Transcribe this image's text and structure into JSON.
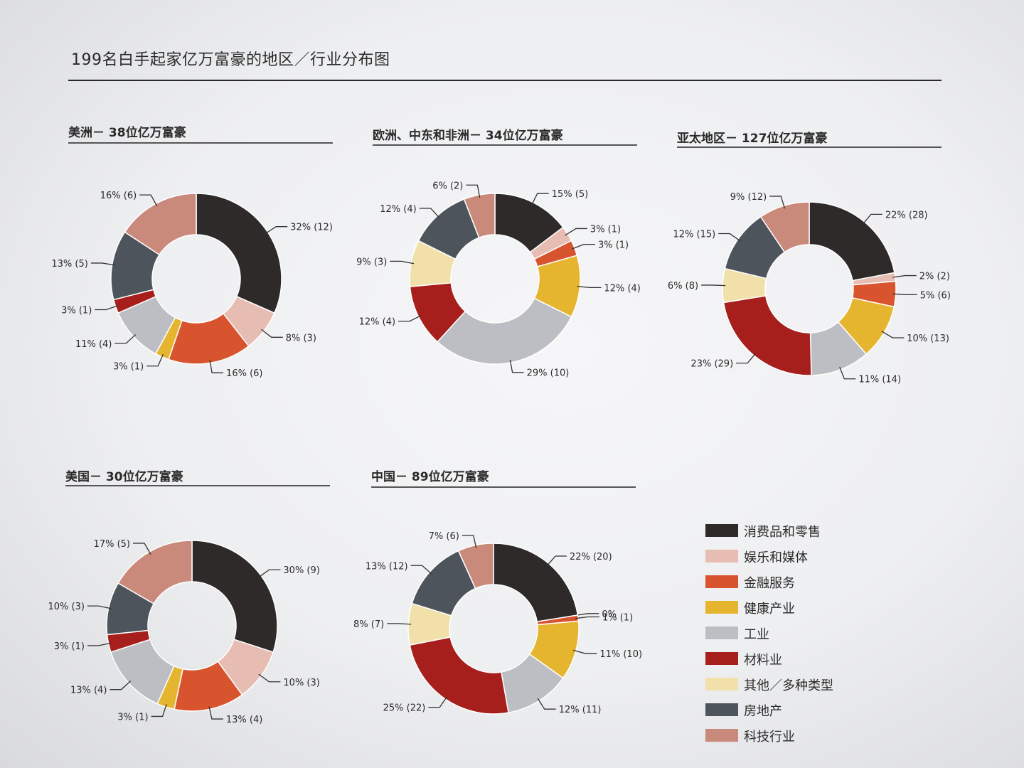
{
  "title": "199名白手起家亿万富豪的地区／行业分布图",
  "categories": [
    {
      "name": "消费品和零售",
      "color": "#2e2a29"
    },
    {
      "name": "娱乐和媒体",
      "color": "#e7bcb3"
    },
    {
      "name": "金融服务",
      "color": "#d8542e"
    },
    {
      "name": "健康产业",
      "color": "#e6b530"
    },
    {
      "name": "工业",
      "color": "#bcbec3"
    },
    {
      "name": "材料业",
      "color": "#a61f1d"
    },
    {
      "name": "其他／多种类型",
      "color": "#f1e0aa"
    },
    {
      "name": "房地产",
      "color": "#4d545b"
    },
    {
      "name": "科技行业",
      "color": "#c98a7c"
    }
  ],
  "chart_data": [
    {
      "type": "pie",
      "title": "美洲－ 38位亿万富豪",
      "categories": [
        "消费品和零售",
        "娱乐和媒体",
        "金融服务",
        "健康产业",
        "工业",
        "材料业",
        "其他／多种类型",
        "房地产",
        "科技行业"
      ],
      "values": [
        12,
        3,
        6,
        1,
        4,
        1,
        0,
        5,
        6
      ],
      "labels": [
        "32% (12)",
        "8% (3)",
        "16% (6)",
        "3% (1)",
        "11% (4)",
        "3% (1)",
        "",
        "13% (5)",
        "16% (6)"
      ]
    },
    {
      "type": "pie",
      "title": "欧洲、中东和非洲－ 34位亿万富豪",
      "categories": [
        "消费品和零售",
        "娱乐和媒体",
        "金融服务",
        "健康产业",
        "工业",
        "材料业",
        "其他／多种类型",
        "房地产",
        "科技行业"
      ],
      "values": [
        5,
        1,
        1,
        4,
        10,
        4,
        3,
        4,
        2
      ],
      "labels": [
        "15% (5)",
        "3% (1)",
        "3% (1)",
        "12% (4)",
        "29% (10)",
        "12% (4)",
        "9% (3)",
        "12% (4)",
        "6% (2)"
      ]
    },
    {
      "type": "pie",
      "title": "亚太地区－ 127位亿万富豪",
      "categories": [
        "消费品和零售",
        "娱乐和媒体",
        "金融服务",
        "健康产业",
        "工业",
        "材料业",
        "其他／多种类型",
        "房地产",
        "科技行业"
      ],
      "values": [
        28,
        2,
        6,
        13,
        14,
        29,
        8,
        15,
        12
      ],
      "labels": [
        "22% (28)",
        "2% (2)",
        "5% (6)",
        "10% (13)",
        "11% (14)",
        "23% (29)",
        "6% (8)",
        "12% (15)",
        "9% (12)"
      ]
    },
    {
      "type": "pie",
      "title": "美国－ 30位亿万富豪",
      "categories": [
        "消费品和零售",
        "娱乐和媒体",
        "金融服务",
        "健康产业",
        "工业",
        "材料业",
        "其他／多种类型",
        "房地产",
        "科技行业"
      ],
      "values": [
        9,
        3,
        4,
        1,
        4,
        1,
        0,
        3,
        5
      ],
      "labels": [
        "30% (9)",
        "10% (3)",
        "13% (4)",
        "3% (1)",
        "13% (4)",
        "3% (1)",
        "",
        "10% (3)",
        "17% (5)"
      ]
    },
    {
      "type": "pie",
      "title": "中国－ 89位亿万富豪",
      "categories": [
        "消费品和零售",
        "娱乐和媒体",
        "金融服务",
        "健康产业",
        "工业",
        "材料业",
        "其他／多种类型",
        "房地产",
        "科技行业"
      ],
      "values": [
        20,
        0,
        1,
        10,
        11,
        22,
        7,
        12,
        6
      ],
      "labels": [
        "22% (20)",
        "0%",
        "1% (1)",
        "11% (10)",
        "12% (11)",
        "25% (22)",
        "8% (7)",
        "13% (12)",
        "7% (6)"
      ]
    }
  ]
}
